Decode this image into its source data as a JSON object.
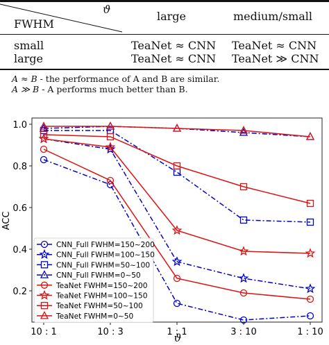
{
  "table": {
    "header": {
      "corner_top": "ϑ",
      "corner_bottom": "FWHM",
      "col1": "large",
      "col2": "medium/small"
    },
    "rows": [
      {
        "label": "small",
        "c1": "TeaNet ≈ CNN",
        "c2": "TeaNet ≈ CNN"
      },
      {
        "label": "large",
        "c1": "TeaNet ≈ CNN",
        "c2": "TeaNet ≫ CNN"
      }
    ],
    "notes": [
      {
        "symbol": "A ≈ B",
        "text": " - the performance of A and B are similar."
      },
      {
        "symbol": "A ≫ B",
        "text": " - A performs much better than B."
      }
    ]
  },
  "chart_data": {
    "type": "line",
    "categories": [
      "10 : 1",
      "10 : 3",
      "1 : 1",
      "3 : 10",
      "1 : 10"
    ],
    "xlabel": "ϑ",
    "ylabel": "ACC",
    "ylim": [
      0.05,
      1.03
    ],
    "yticks": [
      0.2,
      0.4,
      0.6,
      0.8,
      1.0
    ],
    "ytick_labels": [
      "0.2",
      "0.4",
      "0.6",
      "0.8",
      "1.0"
    ],
    "grid": false,
    "legend_position": "bottom-left",
    "series": [
      {
        "name": "CNN_Full FWHM=150~200",
        "color": "#0000cc",
        "dash": "dashdot",
        "marker": "circle",
        "values": [
          0.83,
          0.71,
          0.14,
          0.06,
          0.08
        ]
      },
      {
        "name": "CNN_Full FWHM=100~150",
        "color": "#0000cc",
        "dash": "dashdot",
        "marker": "star",
        "values": [
          0.93,
          0.88,
          0.34,
          0.26,
          0.21
        ]
      },
      {
        "name": "CNN_Full FWHM=50~100",
        "color": "#0000cc",
        "dash": "dashdot",
        "marker": "square",
        "values": [
          0.97,
          0.97,
          0.77,
          0.54,
          0.53
        ]
      },
      {
        "name": "CNN_Full FWHM=0~50",
        "color": "#0000cc",
        "dash": "dashdot",
        "marker": "triangle",
        "values": [
          0.98,
          0.99,
          0.98,
          0.96,
          0.94
        ]
      },
      {
        "name": "TeaNet FWHM=150~200",
        "color": "#dd1111",
        "dash": "solid",
        "marker": "circle",
        "values": [
          0.88,
          0.73,
          0.26,
          0.19,
          0.16
        ]
      },
      {
        "name": "TeaNet FWHM=100~150",
        "color": "#dd1111",
        "dash": "solid",
        "marker": "star",
        "values": [
          0.93,
          0.89,
          0.49,
          0.39,
          0.38
        ]
      },
      {
        "name": "TeaNet FWHM=50~100",
        "color": "#dd1111",
        "dash": "solid",
        "marker": "square",
        "values": [
          0.95,
          0.94,
          0.8,
          0.7,
          0.62
        ]
      },
      {
        "name": "TeaNet FWHM=0~50",
        "color": "#dd1111",
        "dash": "solid",
        "marker": "triangle",
        "values": [
          0.99,
          0.99,
          0.98,
          0.97,
          0.94
        ]
      }
    ]
  }
}
